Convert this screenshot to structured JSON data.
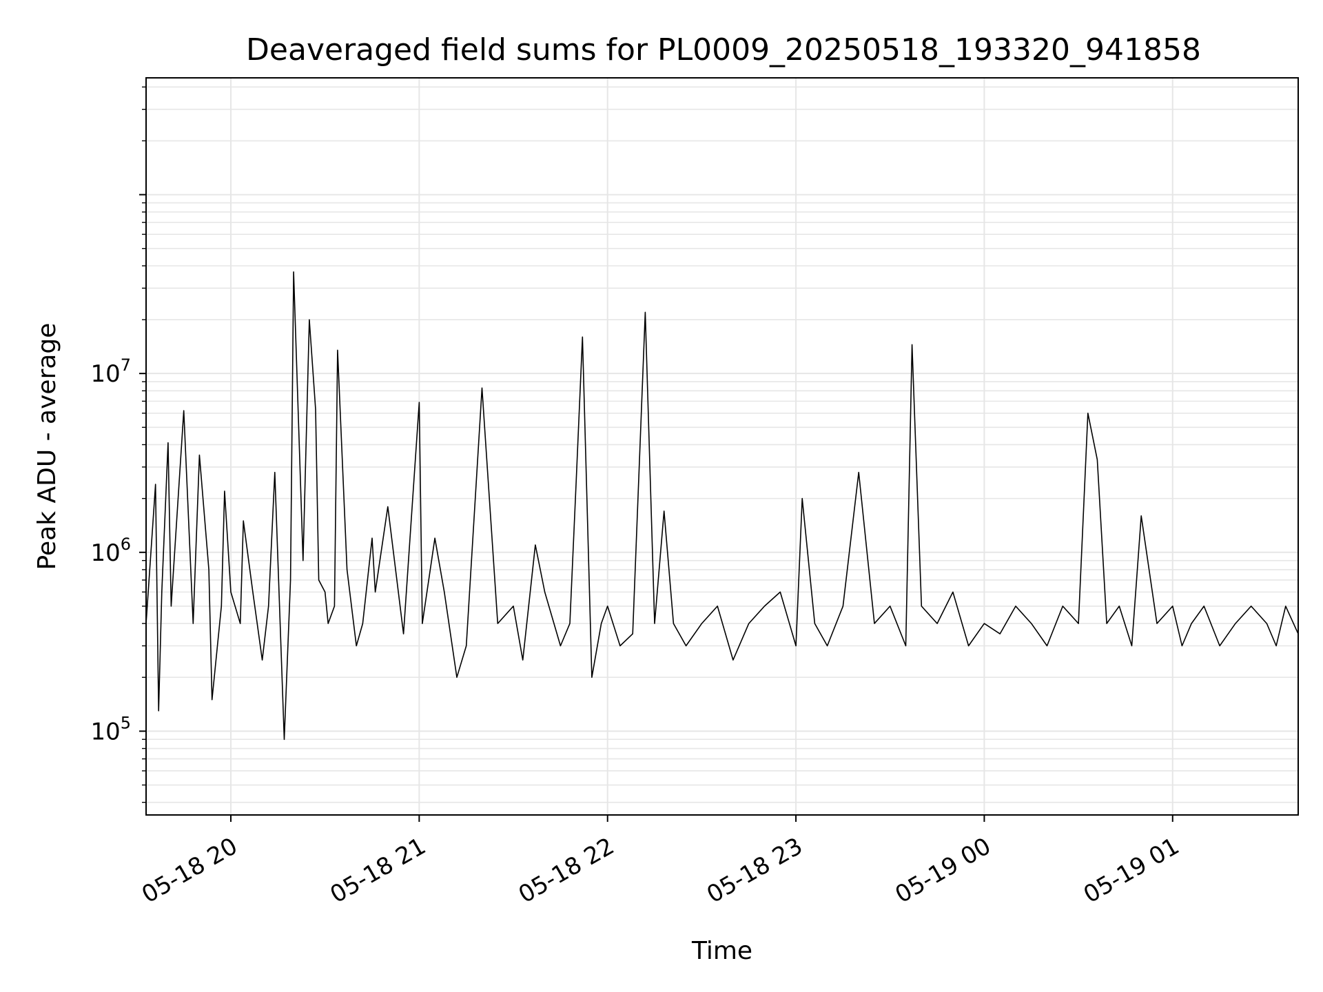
{
  "chart_data": {
    "type": "line",
    "title": "Deaveraged field sums for PL0009_20250518_193320_941858",
    "xlabel": "Time",
    "ylabel": "Peak ADU - average",
    "yscale": "log",
    "ylim": [
      34000,
      450000000
    ],
    "xlim": [
      "2025-05-18 19:33",
      "2025-05-19 01:40"
    ],
    "grid": true,
    "line_color": "#000000",
    "grid_color": "#e6e6e6",
    "x_ticks": [
      {
        "t": "2025-05-18 20:00",
        "label": "05-18 20"
      },
      {
        "t": "2025-05-18 21:00",
        "label": "05-18 21"
      },
      {
        "t": "2025-05-18 22:00",
        "label": "05-18 22"
      },
      {
        "t": "2025-05-18 23:00",
        "label": "05-18 23"
      },
      {
        "t": "2025-05-19 00:00",
        "label": "05-19 00"
      },
      {
        "t": "2025-05-19 01:00",
        "label": "05-19 01"
      }
    ],
    "y_ticks": [
      {
        "value": 100000,
        "base": "10",
        "exp": "5"
      },
      {
        "value": 1000000,
        "base": "10",
        "exp": "6"
      },
      {
        "value": 10000000,
        "base": "10",
        "exp": "7"
      }
    ],
    "series": [
      {
        "x": [
          "2025-05-18 19:33",
          "2025-05-18 19:36",
          "2025-05-18 19:37",
          "2025-05-18 19:38",
          "2025-05-18 19:40",
          "2025-05-18 19:41",
          "2025-05-18 19:45",
          "2025-05-18 19:48",
          "2025-05-18 19:50",
          "2025-05-18 19:53",
          "2025-05-18 19:54",
          "2025-05-18 19:57",
          "2025-05-18 19:58",
          "2025-05-18 20:00",
          "2025-05-18 20:03",
          "2025-05-18 20:04",
          "2025-05-18 20:07",
          "2025-05-18 20:10",
          "2025-05-18 20:12",
          "2025-05-18 20:14",
          "2025-05-18 20:17",
          "2025-05-18 20:19",
          "2025-05-18 20:20",
          "2025-05-18 20:23",
          "2025-05-18 20:25",
          "2025-05-18 20:27",
          "2025-05-18 20:28",
          "2025-05-18 20:30",
          "2025-05-18 20:31",
          "2025-05-18 20:33",
          "2025-05-18 20:34",
          "2025-05-18 20:37",
          "2025-05-18 20:40",
          "2025-05-18 20:42",
          "2025-05-18 20:45",
          "2025-05-18 20:46",
          "2025-05-18 20:50",
          "2025-05-18 20:55",
          "2025-05-18 21:00",
          "2025-05-18 21:01",
          "2025-05-18 21:05",
          "2025-05-18 21:08",
          "2025-05-18 21:12",
          "2025-05-18 21:15",
          "2025-05-18 21:20",
          "2025-05-18 21:25",
          "2025-05-18 21:30",
          "2025-05-18 21:33",
          "2025-05-18 21:37",
          "2025-05-18 21:40",
          "2025-05-18 21:45",
          "2025-05-18 21:48",
          "2025-05-18 21:50",
          "2025-05-18 21:52",
          "2025-05-18 21:55",
          "2025-05-18 21:58",
          "2025-05-18 22:00",
          "2025-05-18 22:04",
          "2025-05-18 22:08",
          "2025-05-18 22:12",
          "2025-05-18 22:15",
          "2025-05-18 22:18",
          "2025-05-18 22:21",
          "2025-05-18 22:25",
          "2025-05-18 22:30",
          "2025-05-18 22:35",
          "2025-05-18 22:40",
          "2025-05-18 22:45",
          "2025-05-18 22:50",
          "2025-05-18 22:55",
          "2025-05-18 23:00",
          "2025-05-18 23:02",
          "2025-05-18 23:06",
          "2025-05-18 23:10",
          "2025-05-18 23:15",
          "2025-05-18 23:20",
          "2025-05-18 23:25",
          "2025-05-18 23:30",
          "2025-05-18 23:35",
          "2025-05-18 23:37",
          "2025-05-18 23:40",
          "2025-05-18 23:45",
          "2025-05-18 23:50",
          "2025-05-18 23:55",
          "2025-05-19 00:00",
          "2025-05-19 00:05",
          "2025-05-19 00:10",
          "2025-05-19 00:15",
          "2025-05-19 00:20",
          "2025-05-19 00:25",
          "2025-05-19 00:30",
          "2025-05-19 00:33",
          "2025-05-19 00:36",
          "2025-05-19 00:39",
          "2025-05-19 00:43",
          "2025-05-19 00:47",
          "2025-05-19 00:50",
          "2025-05-19 00:55",
          "2025-05-19 01:00",
          "2025-05-19 01:03",
          "2025-05-19 01:06",
          "2025-05-19 01:10",
          "2025-05-19 01:15",
          "2025-05-19 01:20",
          "2025-05-19 01:25",
          "2025-05-19 01:30",
          "2025-05-19 01:33",
          "2025-05-19 01:36",
          "2025-05-19 01:40"
        ],
        "y": [
          400000,
          2400000,
          130000,
          600000,
          4100000,
          500000,
          6200000,
          400000,
          3500000,
          800000,
          150000,
          500000,
          2200000,
          600000,
          400000,
          1500000,
          600000,
          250000,
          500000,
          2800000,
          90000,
          700000,
          37000000,
          900000,
          20000000,
          6300000,
          700000,
          600000,
          400000,
          500000,
          13500000,
          800000,
          300000,
          400000,
          1200000,
          600000,
          1800000,
          350000,
          6900000,
          400000,
          1200000,
          600000,
          200000,
          300000,
          8300000,
          400000,
          500000,
          250000,
          1100000,
          600000,
          300000,
          400000,
          2500000,
          16000000,
          200000,
          400000,
          500000,
          300000,
          350000,
          22000000,
          400000,
          1700000,
          400000,
          300000,
          400000,
          500000,
          250000,
          400000,
          500000,
          600000,
          300000,
          2000000,
          400000,
          300000,
          500000,
          2800000,
          400000,
          500000,
          300000,
          14500000,
          500000,
          400000,
          600000,
          300000,
          400000,
          350000,
          500000,
          400000,
          300000,
          500000,
          400000,
          6000000,
          3300000,
          400000,
          500000,
          300000,
          1600000,
          400000,
          500000,
          300000,
          400000,
          500000,
          300000,
          400000,
          500000,
          400000,
          300000,
          500000,
          350000
        ]
      }
    ]
  }
}
